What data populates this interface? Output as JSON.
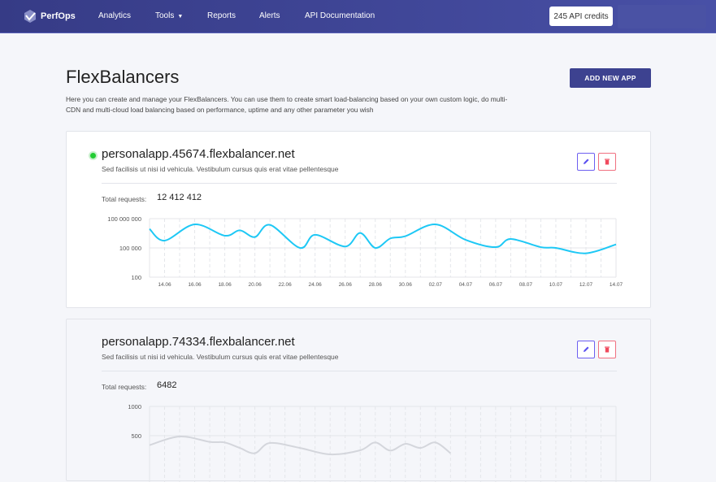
{
  "nav": {
    "brand": "PerfOps",
    "links": [
      "Analytics",
      "Tools",
      "Reports",
      "Alerts",
      "API Documentation"
    ],
    "credits": "245 API credits"
  },
  "page": {
    "title": "FlexBalancers",
    "intro": "Here you can create and manage your FlexBalancers. You can use them to create smart load-balancing based on your own custom logic, do multi-CDN and multi-cloud load balancing based on performance, uptime and any other parameter you wish",
    "add_button": "ADD NEW APP"
  },
  "apps": [
    {
      "name": "personalapp.45674.flexbalancer.net",
      "description": "Sed facilisis ut nisi id vehicula. Vestibulum cursus quis erat vitae pellentesque",
      "total_label": "Total requests:",
      "total": "12 412 412",
      "status": "active",
      "status_color": "#22cc33"
    },
    {
      "name": "personalapp.74334.flexbalancer.net",
      "description": "Sed facilisis ut nisi id vehicula. Vestibulum cursus quis erat vitae pellentesque",
      "total_label": "Total requests:",
      "total": "6482",
      "status": "inactive"
    }
  ],
  "chart_data": [
    {
      "type": "line",
      "scale": "log",
      "ylim": [
        100,
        100000000
      ],
      "yticks": [
        "100 000 000",
        "100 000",
        "100"
      ],
      "xticks": [
        "14.06",
        "16.06",
        "18.06",
        "20.06",
        "22.06",
        "24.06",
        "26.06",
        "28.06",
        "30.06",
        "02.07",
        "04.07",
        "06.07",
        "08.07",
        "10.07",
        "12.07",
        "14.07"
      ],
      "grid": true,
      "color": "#1ec8f5",
      "points": [
        [
          "13.06",
          8800000
        ],
        [
          "14.06",
          560000
        ],
        [
          "16.06",
          26000000
        ],
        [
          "18.06",
          1800000
        ],
        [
          "19.06",
          6300000
        ],
        [
          "20.06",
          1300000
        ],
        [
          "21.06",
          23000000
        ],
        [
          "23.06",
          100000
        ],
        [
          "24.06",
          2200000
        ],
        [
          "26.06",
          140000
        ],
        [
          "27.06",
          3400000
        ],
        [
          "28.06",
          100000
        ],
        [
          "29.06",
          930000
        ],
        [
          "30.06",
          1600000
        ],
        [
          "02.07",
          26000000
        ],
        [
          "04.07",
          680000
        ],
        [
          "06.07",
          120000
        ],
        [
          "07.07",
          830000
        ],
        [
          "09.07",
          120000
        ],
        [
          "10.07",
          100000
        ],
        [
          "12.07",
          28000
        ],
        [
          "14.07",
          230000
        ]
      ]
    },
    {
      "type": "line",
      "scale": "linear",
      "yticks": [
        "1000",
        "500"
      ],
      "grid": true,
      "color": "#d4d6dc",
      "points": [
        [
          "13.06",
          338
        ],
        [
          "15.06",
          486
        ],
        [
          "17.06",
          394
        ],
        [
          "18.06",
          384
        ],
        [
          "19.06",
          290
        ],
        [
          "20.06",
          200
        ],
        [
          "21.06",
          375
        ],
        [
          "23.06",
          290
        ],
        [
          "25.06",
          180
        ],
        [
          "27.06",
          250
        ],
        [
          "28.06",
          384
        ],
        [
          "29.06",
          245
        ],
        [
          "30.06",
          360
        ],
        [
          "01.07",
          290
        ],
        [
          "02.07",
          384
        ],
        [
          "03.07",
          200
        ]
      ]
    }
  ]
}
